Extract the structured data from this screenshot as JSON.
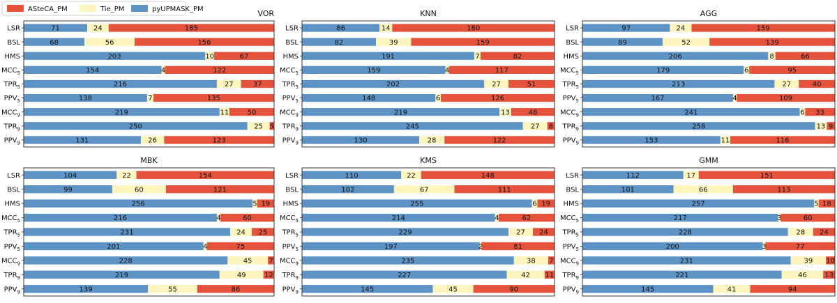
{
  "legend": {
    "location": "top-left",
    "entries": [
      {
        "key": "astecA",
        "label": "ASteCA_PM",
        "color": "#e5533d"
      },
      {
        "key": "tie",
        "label": "Tie_PM",
        "color": "#fdf5bd"
      },
      {
        "key": "pyupmask",
        "label": "pyUPMASK_PM",
        "color": "#5e93c5"
      }
    ]
  },
  "chart_data": [
    {
      "type": "bar",
      "title": "VOR",
      "title_align": "right",
      "categories": [
        {
          "base": "LSR",
          "sub": ""
        },
        {
          "base": "BSL",
          "sub": ""
        },
        {
          "base": "HMS",
          "sub": ""
        },
        {
          "base": "MCC",
          "sub": "5"
        },
        {
          "base": "TPR",
          "sub": "5"
        },
        {
          "base": "PPV",
          "sub": "5"
        },
        {
          "base": "MCC",
          "sub": "9"
        },
        {
          "base": "TPR",
          "sub": "9"
        },
        {
          "base": "PPV",
          "sub": "9"
        }
      ],
      "series": [
        {
          "name": "pyUPMASK_PM",
          "values": [
            71,
            68,
            203,
            154,
            216,
            138,
            219,
            250,
            131
          ]
        },
        {
          "name": "Tie_PM",
          "values": [
            24,
            56,
            10,
            4,
            27,
            7,
            11,
            25,
            26
          ]
        },
        {
          "name": "ASteCA_PM",
          "values": [
            185,
            156,
            67,
            122,
            37,
            135,
            50,
            5,
            123
          ]
        }
      ],
      "xlim": [
        0,
        280
      ]
    },
    {
      "type": "bar",
      "title": "KNN",
      "title_align": "center",
      "categories": [
        {
          "base": "LSR",
          "sub": ""
        },
        {
          "base": "BSL",
          "sub": ""
        },
        {
          "base": "HMS",
          "sub": ""
        },
        {
          "base": "MCC",
          "sub": "5"
        },
        {
          "base": "TPR",
          "sub": "5"
        },
        {
          "base": "PPV",
          "sub": "5"
        },
        {
          "base": "MCC",
          "sub": "9"
        },
        {
          "base": "TPR",
          "sub": "9"
        },
        {
          "base": "PPV",
          "sub": "9"
        }
      ],
      "series": [
        {
          "name": "pyUPMASK_PM",
          "values": [
            86,
            82,
            191,
            159,
            202,
            148,
            219,
            245,
            130
          ]
        },
        {
          "name": "Tie_PM",
          "values": [
            14,
            39,
            7,
            4,
            27,
            6,
            13,
            27,
            28
          ]
        },
        {
          "name": "ASteCA_PM",
          "values": [
            180,
            159,
            82,
            117,
            51,
            126,
            48,
            8,
            122
          ]
        }
      ],
      "xlim": [
        0,
        280
      ]
    },
    {
      "type": "bar",
      "title": "AGG",
      "title_align": "center",
      "categories": [
        {
          "base": "LSR",
          "sub": ""
        },
        {
          "base": "BSL",
          "sub": ""
        },
        {
          "base": "HMS",
          "sub": ""
        },
        {
          "base": "MCC",
          "sub": "5"
        },
        {
          "base": "TPR",
          "sub": "5"
        },
        {
          "base": "PPV",
          "sub": "5"
        },
        {
          "base": "MCC",
          "sub": "9"
        },
        {
          "base": "TPR",
          "sub": "9"
        },
        {
          "base": "PPV",
          "sub": "9"
        }
      ],
      "series": [
        {
          "name": "pyUPMASK_PM",
          "values": [
            97,
            89,
            206,
            179,
            213,
            167,
            241,
            258,
            153
          ]
        },
        {
          "name": "Tie_PM",
          "values": [
            24,
            52,
            8,
            6,
            27,
            4,
            6,
            13,
            11
          ]
        },
        {
          "name": "ASteCA_PM",
          "values": [
            159,
            139,
            66,
            95,
            40,
            109,
            33,
            9,
            116
          ]
        }
      ],
      "xlim": [
        0,
        280
      ]
    },
    {
      "type": "bar",
      "title": "MBK",
      "title_align": "center",
      "categories": [
        {
          "base": "LSR",
          "sub": ""
        },
        {
          "base": "BSL",
          "sub": ""
        },
        {
          "base": "HMS",
          "sub": ""
        },
        {
          "base": "MCC",
          "sub": "5"
        },
        {
          "base": "TPR",
          "sub": "5"
        },
        {
          "base": "PPV",
          "sub": "5"
        },
        {
          "base": "MCC",
          "sub": "9"
        },
        {
          "base": "TPR",
          "sub": "9"
        },
        {
          "base": "PPV",
          "sub": "9"
        }
      ],
      "series": [
        {
          "name": "pyUPMASK_PM",
          "values": [
            104,
            99,
            256,
            216,
            231,
            201,
            228,
            219,
            139
          ]
        },
        {
          "name": "Tie_PM",
          "values": [
            22,
            60,
            5,
            4,
            24,
            4,
            45,
            49,
            55
          ]
        },
        {
          "name": "ASteCA_PM",
          "values": [
            154,
            121,
            19,
            60,
            25,
            75,
            7,
            12,
            86
          ]
        }
      ],
      "xlim": [
        0,
        280
      ]
    },
    {
      "type": "bar",
      "title": "KMS",
      "title_align": "center",
      "categories": [
        {
          "base": "LSR",
          "sub": ""
        },
        {
          "base": "BSL",
          "sub": ""
        },
        {
          "base": "HMS",
          "sub": ""
        },
        {
          "base": "MCC",
          "sub": "5"
        },
        {
          "base": "TPR",
          "sub": "5"
        },
        {
          "base": "PPV",
          "sub": "5"
        },
        {
          "base": "MCC",
          "sub": "9"
        },
        {
          "base": "TPR",
          "sub": "9"
        },
        {
          "base": "PPV",
          "sub": "9"
        }
      ],
      "series": [
        {
          "name": "pyUPMASK_PM",
          "values": [
            110,
            102,
            255,
            214,
            229,
            197,
            235,
            227,
            145
          ]
        },
        {
          "name": "Tie_PM",
          "values": [
            22,
            67,
            6,
            4,
            27,
            2,
            38,
            42,
            45
          ]
        },
        {
          "name": "ASteCA_PM",
          "values": [
            148,
            111,
            19,
            62,
            24,
            81,
            7,
            11,
            90
          ]
        }
      ],
      "xlim": [
        0,
        280
      ]
    },
    {
      "type": "bar",
      "title": "GMM",
      "title_align": "center",
      "categories": [
        {
          "base": "LSR",
          "sub": ""
        },
        {
          "base": "BSL",
          "sub": ""
        },
        {
          "base": "HMS",
          "sub": ""
        },
        {
          "base": "MCC",
          "sub": "5"
        },
        {
          "base": "TPR",
          "sub": "5"
        },
        {
          "base": "PPV",
          "sub": "5"
        },
        {
          "base": "MCC",
          "sub": "9"
        },
        {
          "base": "TPR",
          "sub": "9"
        },
        {
          "base": "PPV",
          "sub": "9"
        }
      ],
      "series": [
        {
          "name": "pyUPMASK_PM",
          "values": [
            112,
            101,
            257,
            217,
            228,
            200,
            231,
            221,
            145
          ]
        },
        {
          "name": "Tie_PM",
          "values": [
            17,
            66,
            5,
            3,
            28,
            3,
            39,
            46,
            41
          ]
        },
        {
          "name": "ASteCA_PM",
          "values": [
            151,
            113,
            18,
            60,
            24,
            77,
            10,
            13,
            94
          ]
        }
      ],
      "xlim": [
        0,
        280
      ]
    }
  ]
}
